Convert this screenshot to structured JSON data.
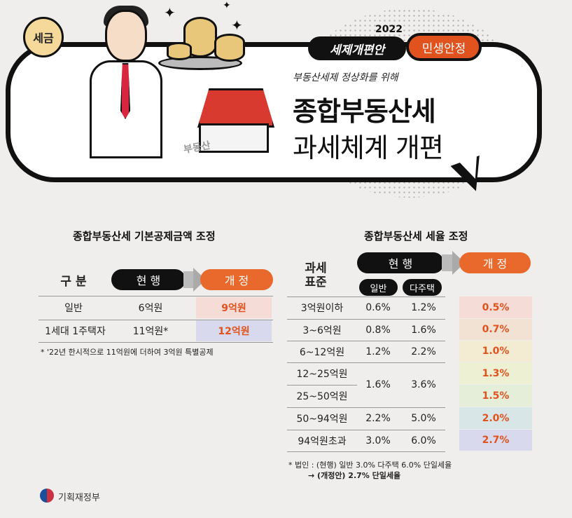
{
  "hero": {
    "coin_label": "세금",
    "tag_series": "세제개편안",
    "tag_year": "2022",
    "tag_theme": "민생안정",
    "subtitle": "부동산세제 정상화를 위해",
    "title_line1": "종합부동산세",
    "title_line2": "과세체계 개편",
    "house_label": "부동산"
  },
  "deduction": {
    "title": "종합부동산세 기본공제금액 조정",
    "col_category": "구 분",
    "col_current": "현 행",
    "col_revised": "개 정",
    "rows": [
      {
        "category": "일반",
        "current": "6억원",
        "revised": "9억원"
      },
      {
        "category": "1세대 1주택자",
        "current": "11억원*",
        "revised": "12억원"
      }
    ],
    "note": "* '22년 한시적으로 11억원에 더하여 3억원 특별공제",
    "colors": {
      "row1_bg": "#f6dcd6",
      "row2_bg": "#d8d9ec"
    }
  },
  "rate": {
    "title": "종합부동산세 세율 조정",
    "col_base": "과세\n표준",
    "col_current": "현 행",
    "col_general": "일반",
    "col_multi": "다주택",
    "col_revised": "개 정",
    "rows": [
      {
        "base": "3억원이하",
        "general": "0.6%",
        "multi": "1.2%",
        "revised": "0.5%"
      },
      {
        "base": "3~6억원",
        "general": "0.8%",
        "multi": "1.6%",
        "revised": "0.7%"
      },
      {
        "base": "6~12억원",
        "general": "1.2%",
        "multi": "2.2%",
        "revised": "1.0%"
      },
      {
        "base": "12~25억원",
        "general": "1.6%",
        "multi": "3.6%",
        "revised": "1.3%"
      },
      {
        "base": "25~50억원",
        "general": "",
        "multi": "",
        "revised": "1.5%"
      },
      {
        "base": "50~94억원",
        "general": "2.2%",
        "multi": "5.0%",
        "revised": "2.0%"
      },
      {
        "base": "94억원초과",
        "general": "3.0%",
        "multi": "6.0%",
        "revised": "2.7%"
      }
    ],
    "note1": "* 법인 : (현행) 일반 3.0% 다주택 6.0% 단일세율",
    "note2": "→ (개정안) 2.7% 단일세율",
    "colors": [
      "#f6dcd6",
      "#f2e2d4",
      "#f4ecd2",
      "#eef0d4",
      "#e4eed8",
      "#d8e6e8",
      "#d8d9ec"
    ]
  },
  "footer": {
    "org": "기획재정부"
  }
}
